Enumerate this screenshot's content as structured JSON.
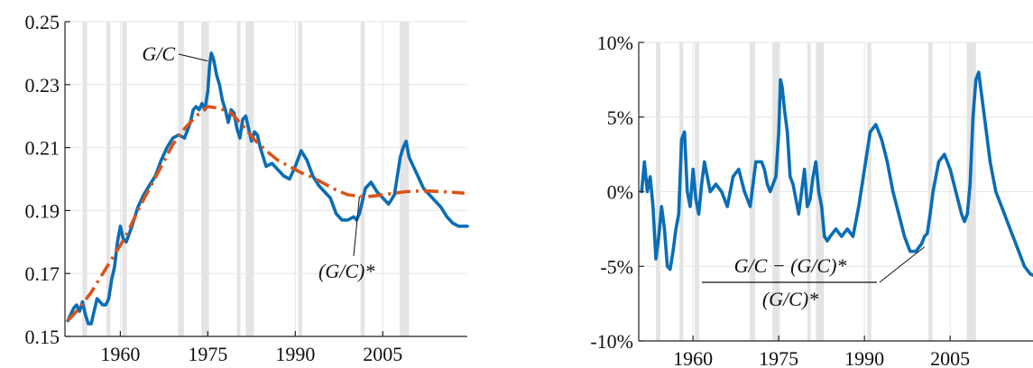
{
  "chart_data": [
    {
      "type": "line",
      "title": "",
      "xlabel": "",
      "ylabel": "",
      "xlim": [
        1950.5,
        2019.5
      ],
      "ylim": [
        0.15,
        0.25
      ],
      "x_ticks": [
        1960,
        1975,
        1990,
        2005
      ],
      "x_tick_labels": [
        "1960",
        "1975",
        "1990",
        "2005"
      ],
      "y_ticks": [
        0.15,
        0.17,
        0.19,
        0.21,
        0.23,
        0.25
      ],
      "y_tick_labels": [
        "0.15",
        "0.17",
        "0.19",
        "0.21",
        "0.23",
        "0.25"
      ],
      "grid": true,
      "colors": {
        "actual": "#0a6db5",
        "trend": "#d95319",
        "recession": "#e4e4e4"
      },
      "recessions": [
        [
          1953.5,
          1954.3
        ],
        [
          1957.6,
          1958.3
        ],
        [
          1960.3,
          1961.1
        ],
        [
          1969.9,
          1970.9
        ],
        [
          1973.9,
          1975.2
        ],
        [
          1980.0,
          1980.6
        ],
        [
          1981.5,
          1982.9
        ],
        [
          1990.5,
          1991.2
        ],
        [
          2001.2,
          2001.9
        ],
        [
          2007.9,
          2009.5
        ]
      ],
      "annotations": [
        {
          "text": "G/C",
          "series": "actual",
          "x": 1975.0,
          "y": 0.2375
        },
        {
          "text": "(G/C)*",
          "series": "trend",
          "x": 2001.0,
          "y": 0.1945
        }
      ],
      "series": [
        {
          "key": "actual",
          "style": "solid",
          "x": [
            1951.0,
            1952.0,
            1952.5,
            1953.0,
            1953.5,
            1954.0,
            1954.5,
            1955.0,
            1955.5,
            1956.0,
            1956.5,
            1957.0,
            1957.5,
            1958.0,
            1958.5,
            1959.0,
            1959.5,
            1960.0,
            1960.5,
            1961.0,
            1962.0,
            1963.0,
            1964.0,
            1965.0,
            1966.0,
            1967.0,
            1968.0,
            1969.0,
            1970.0,
            1971.0,
            1972.0,
            1972.5,
            1973.0,
            1973.5,
            1974.0,
            1974.5,
            1975.0,
            1975.3,
            1975.6,
            1976.0,
            1976.5,
            1977.0,
            1977.5,
            1978.0,
            1978.5,
            1979.0,
            1979.5,
            1980.0,
            1980.5,
            1981.0,
            1981.5,
            1982.0,
            1982.5,
            1983.0,
            1983.5,
            1984.0,
            1985.0,
            1986.0,
            1987.0,
            1988.0,
            1989.0,
            1990.0,
            1991.0,
            1992.0,
            1993.0,
            1994.0,
            1995.0,
            1996.0,
            1997.0,
            1998.0,
            1999.0,
            2000.0,
            2000.5,
            2001.0,
            2001.5,
            2002.0,
            2003.0,
            2004.0,
            2005.0,
            2006.0,
            2007.0,
            2008.0,
            2008.5,
            2009.0,
            2009.5,
            2010.0,
            2011.0,
            2012.0,
            2013.0,
            2014.0,
            2015.0,
            2016.0,
            2017.0,
            2018.0,
            2019.0,
            2019.5
          ],
          "y": [
            0.155,
            0.159,
            0.16,
            0.158,
            0.161,
            0.157,
            0.154,
            0.154,
            0.158,
            0.162,
            0.161,
            0.16,
            0.16,
            0.162,
            0.168,
            0.172,
            0.18,
            0.185,
            0.181,
            0.18,
            0.185,
            0.191,
            0.195,
            0.198,
            0.201,
            0.206,
            0.21,
            0.213,
            0.214,
            0.213,
            0.218,
            0.222,
            0.223,
            0.222,
            0.224,
            0.222,
            0.228,
            0.236,
            0.24,
            0.238,
            0.233,
            0.23,
            0.225,
            0.222,
            0.218,
            0.222,
            0.221,
            0.216,
            0.213,
            0.219,
            0.22,
            0.216,
            0.212,
            0.215,
            0.214,
            0.21,
            0.204,
            0.205,
            0.203,
            0.201,
            0.2,
            0.204,
            0.209,
            0.206,
            0.201,
            0.198,
            0.196,
            0.194,
            0.189,
            0.187,
            0.187,
            0.188,
            0.187,
            0.189,
            0.193,
            0.197,
            0.199,
            0.196,
            0.194,
            0.192,
            0.195,
            0.207,
            0.21,
            0.212,
            0.207,
            0.205,
            0.201,
            0.197,
            0.195,
            0.193,
            0.191,
            0.188,
            0.186,
            0.185,
            0.185,
            0.185
          ]
        },
        {
          "key": "trend",
          "style": "dashdot",
          "x": [
            1951,
            1953,
            1955,
            1957,
            1959,
            1961,
            1963,
            1965,
            1967,
            1969,
            1971,
            1973,
            1975,
            1977,
            1979,
            1981,
            1983,
            1985,
            1987,
            1989,
            1991,
            1993,
            1995,
            1997,
            1999,
            2001,
            2003,
            2005,
            2007,
            2009,
            2011,
            2013,
            2015,
            2017,
            2019
          ],
          "y": [
            0.155,
            0.159,
            0.164,
            0.17,
            0.176,
            0.182,
            0.19,
            0.197,
            0.204,
            0.211,
            0.216,
            0.22,
            0.223,
            0.2225,
            0.221,
            0.217,
            0.2125,
            0.209,
            0.206,
            0.204,
            0.202,
            0.2005,
            0.1985,
            0.1965,
            0.195,
            0.1945,
            0.1945,
            0.195,
            0.1955,
            0.196,
            0.1962,
            0.1962,
            0.196,
            0.1958,
            0.1955
          ]
        }
      ]
    },
    {
      "type": "line",
      "title": "",
      "xlabel": "",
      "ylabel": "",
      "xlim": [
        1950.5,
        2019.5
      ],
      "ylim": [
        -10,
        10
      ],
      "y_unit": "%",
      "x_ticks": [
        1960,
        1975,
        1990,
        2005
      ],
      "x_tick_labels": [
        "1960",
        "1975",
        "1990",
        "2005"
      ],
      "y_ticks": [
        -10,
        -5,
        0,
        5,
        10
      ],
      "y_tick_labels": [
        "-10%",
        "-5%",
        "0%",
        "5%",
        "10%"
      ],
      "grid": true,
      "colors": {
        "gap": "#0a6db5",
        "recession": "#e4e4e4"
      },
      "recessions": [
        [
          1953.5,
          1954.3
        ],
        [
          1957.6,
          1958.3
        ],
        [
          1960.3,
          1961.1
        ],
        [
          1969.9,
          1970.9
        ],
        [
          1973.9,
          1975.2
        ],
        [
          1980.0,
          1980.6
        ],
        [
          1981.5,
          1982.9
        ],
        [
          1990.5,
          1991.2
        ],
        [
          2001.2,
          2001.9
        ],
        [
          2007.9,
          2009.5
        ]
      ],
      "annotations": [
        {
          "numerator": "G/C − (G/C)*",
          "denominator": "(G/C)*",
          "series": "gap",
          "x": 2000.5,
          "y": -3.7
        }
      ],
      "series": [
        {
          "key": "gap",
          "style": "solid",
          "x": [
            1951.0,
            1951.5,
            1952.0,
            1952.5,
            1953.0,
            1953.5,
            1954.0,
            1954.5,
            1955.0,
            1955.5,
            1956.0,
            1956.5,
            1957.0,
            1957.5,
            1958.0,
            1958.5,
            1959.0,
            1959.5,
            1960.0,
            1960.5,
            1961.0,
            1961.5,
            1962.0,
            1962.5,
            1963.0,
            1964.0,
            1965.0,
            1966.0,
            1967.0,
            1968.0,
            1969.0,
            1970.0,
            1971.0,
            1972.0,
            1972.5,
            1973.0,
            1973.5,
            1974.0,
            1974.5,
            1975.0,
            1975.3,
            1975.6,
            1976.0,
            1976.5,
            1977.0,
            1977.5,
            1978.0,
            1978.5,
            1979.0,
            1979.5,
            1980.0,
            1980.5,
            1981.0,
            1981.5,
            1982.0,
            1982.5,
            1983.0,
            1983.5,
            1984.0,
            1985.0,
            1986.0,
            1987.0,
            1988.0,
            1989.0,
            1990.0,
            1991.0,
            1992.0,
            1993.0,
            1994.0,
            1995.0,
            1996.0,
            1997.0,
            1998.0,
            1999.0,
            2000.0,
            2000.5,
            2001.0,
            2001.5,
            2002.0,
            2003.0,
            2004.0,
            2005.0,
            2006.0,
            2007.0,
            2007.5,
            2008.0,
            2008.5,
            2009.0,
            2009.5,
            2010.0,
            2011.0,
            2012.0,
            2013.0,
            2014.0,
            2015.0,
            2016.0,
            2017.0,
            2018.0,
            2019.0,
            2019.5
          ],
          "y": [
            0.0,
            2.0,
            0.0,
            1.0,
            -1.0,
            -4.5,
            -3.0,
            -1.0,
            -2.5,
            -5.0,
            -5.2,
            -4.0,
            -2.5,
            -1.5,
            3.5,
            4.0,
            0.0,
            -1.0,
            1.5,
            -0.5,
            -1.5,
            0.5,
            2.0,
            1.0,
            0.0,
            0.5,
            0.0,
            -1.0,
            1.0,
            1.5,
            0.0,
            -1.0,
            2.0,
            2.0,
            1.5,
            0.5,
            0.0,
            0.5,
            1.0,
            4.0,
            7.5,
            7.0,
            5.5,
            4.0,
            1.0,
            0.5,
            -0.5,
            -1.5,
            0.0,
            1.5,
            -1.0,
            -0.5,
            1.0,
            2.0,
            0.0,
            -1.0,
            -3.0,
            -3.3,
            -3.0,
            -2.5,
            -3.0,
            -2.5,
            -3.0,
            -1.0,
            1.5,
            4.0,
            4.5,
            3.5,
            2.0,
            0.0,
            -1.5,
            -3.0,
            -4.0,
            -4.0,
            -3.5,
            -3.0,
            -2.8,
            -1.5,
            0.0,
            2.0,
            2.5,
            1.5,
            0.0,
            -1.5,
            -2.0,
            -1.5,
            0.5,
            5.0,
            7.5,
            8.0,
            5.0,
            2.0,
            0.0,
            -1.0,
            -2.0,
            -3.0,
            -4.0,
            -5.0,
            -5.5,
            -5.6
          ]
        }
      ]
    }
  ]
}
